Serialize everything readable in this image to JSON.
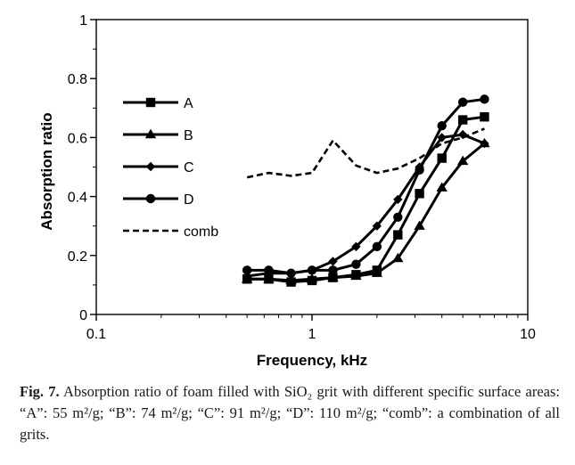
{
  "chart_data": {
    "type": "line",
    "xscale": "log",
    "xlim": [
      0.1,
      10
    ],
    "ylim": [
      0,
      1
    ],
    "xticks": [
      0.1,
      1,
      10
    ],
    "xtick_labels": [
      "0.1",
      "1",
      "10"
    ],
    "yticks": [
      0,
      0.2,
      0.4,
      0.6,
      0.8,
      1
    ],
    "ytick_labels": [
      "0",
      "0.2",
      "0.4",
      "0.6",
      "0.8",
      "1"
    ],
    "xlabel": "Frequency, kHz",
    "ylabel": "Absorption ratio",
    "grid": false,
    "legend_position": "top-left",
    "series": [
      {
        "name": "A",
        "marker": "square",
        "x": [
          0.5,
          0.63,
          0.8,
          1.0,
          1.25,
          1.6,
          2.0,
          2.5,
          3.15,
          4.0,
          5.0,
          6.3
        ],
        "y": [
          0.12,
          0.12,
          0.11,
          0.115,
          0.125,
          0.135,
          0.15,
          0.27,
          0.41,
          0.53,
          0.66,
          0.67
        ]
      },
      {
        "name": "B",
        "marker": "triangle",
        "x": [
          0.5,
          0.63,
          0.8,
          1.0,
          1.25,
          1.6,
          2.0,
          2.5,
          3.15,
          4.0,
          5.0,
          6.3
        ],
        "y": [
          0.12,
          0.12,
          0.115,
          0.12,
          0.125,
          0.13,
          0.14,
          0.19,
          0.3,
          0.43,
          0.52,
          0.58
        ]
      },
      {
        "name": "C",
        "marker": "diamond",
        "x": [
          0.5,
          0.63,
          0.8,
          1.0,
          1.25,
          1.6,
          2.0,
          2.5,
          3.15,
          4.0,
          5.0,
          6.3
        ],
        "y": [
          0.13,
          0.14,
          0.14,
          0.15,
          0.18,
          0.23,
          0.3,
          0.39,
          0.5,
          0.6,
          0.61,
          0.58
        ]
      },
      {
        "name": "D",
        "marker": "circle",
        "x": [
          0.5,
          0.63,
          0.8,
          1.0,
          1.25,
          1.6,
          2.0,
          2.5,
          3.15,
          4.0,
          5.0,
          6.3
        ],
        "y": [
          0.15,
          0.15,
          0.14,
          0.15,
          0.15,
          0.17,
          0.23,
          0.33,
          0.49,
          0.64,
          0.72,
          0.73
        ]
      },
      {
        "name": "comb",
        "marker": "none",
        "dashed": true,
        "x": [
          0.5,
          0.63,
          0.8,
          1.0,
          1.25,
          1.6,
          2.0,
          2.5,
          3.15,
          4.0,
          5.0,
          6.3
        ],
        "y": [
          0.465,
          0.48,
          0.47,
          0.48,
          0.59,
          0.505,
          0.48,
          0.495,
          0.53,
          0.58,
          0.6,
          0.63
        ]
      }
    ]
  },
  "caption": {
    "label": "Fig. 7.",
    "text": "Absorption ratio of foam filled with SiO₂ grit with different specific surface areas: “A”: 55 m²/g; “B”: 74 m²/g; “C”: 91 m²/g; “D”: 110 m²/g; “comb”: a combination of all grits."
  }
}
